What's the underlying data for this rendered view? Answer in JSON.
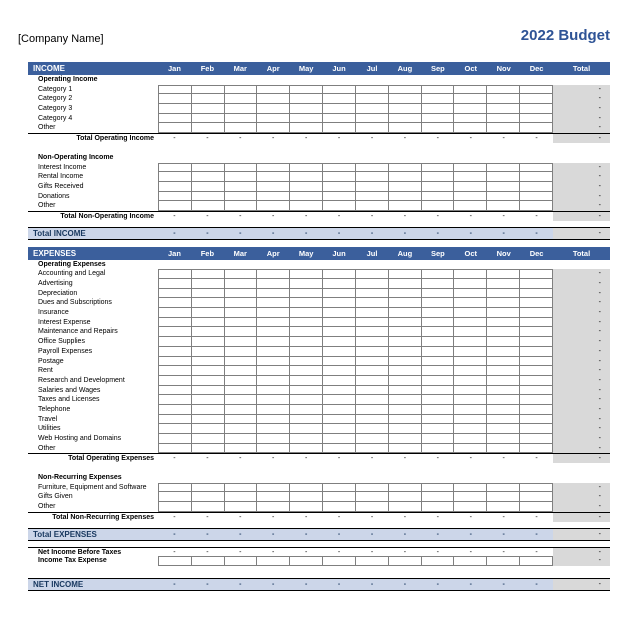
{
  "page": {
    "company_name": "[Company Name]",
    "title": "2022 Budget"
  },
  "months": [
    "Jan",
    "Feb",
    "Mar",
    "Apr",
    "May",
    "Jun",
    "Jul",
    "Aug",
    "Sep",
    "Oct",
    "Nov",
    "Dec"
  ],
  "total_header": "Total",
  "dash": "-",
  "colors": {
    "section_bar": "#3B5F9C",
    "summary_band": "#CCD6E9",
    "total_column": "#D9D9D9",
    "title_blue": "#2F5496",
    "summary_text": "#17375E",
    "grid_border": "#7F7F7F"
  },
  "income": {
    "header": "INCOME",
    "groups": [
      {
        "label": "Operating Income",
        "rows": [
          "Category 1",
          "Category 2",
          "Category 3",
          "Category 4",
          "Other"
        ],
        "total_label": "Total Operating Income"
      },
      {
        "label": "Non-Operating Income",
        "rows": [
          "Interest Income",
          "Rental Income",
          "Gifts Received",
          "Donations",
          "Other"
        ],
        "total_label": "Total Non-Operating Income"
      }
    ],
    "summary_label": "Total INCOME"
  },
  "expenses": {
    "header": "EXPENSES",
    "groups": [
      {
        "label": "Operating Expenses",
        "rows": [
          "Accounting and Legal",
          "Advertising",
          "Depreciation",
          "Dues and Subscriptions",
          "Insurance",
          "Interest Expense",
          "Maintenance and Repairs",
          "Office Supplies",
          "Payroll Expenses",
          "Postage",
          "Rent",
          "Research and Development",
          "Salaries and Wages",
          "Taxes and Licenses",
          "Telephone",
          "Travel",
          "Utilities",
          "Web Hosting and Domains",
          "Other"
        ],
        "total_label": "Total Operating Expenses"
      },
      {
        "label": "Non-Recurring Expenses",
        "rows": [
          "Furniture, Equipment and Software",
          "Gifts Given",
          "Other"
        ],
        "total_label": "Total Non-Recurring Expenses"
      }
    ],
    "summary_label": "Total EXPENSES"
  },
  "net": {
    "before_taxes_label": "Net Income Before Taxes",
    "tax_label": "Income Tax Expense",
    "summary_label": "NET INCOME"
  }
}
